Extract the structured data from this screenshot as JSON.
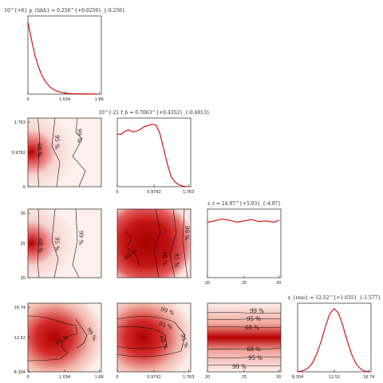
{
  "chart_data": [
    {
      "type": "line",
      "panel": "pbh_marginal",
      "title": "10^{+6} p_{bhh} = 0.256^{+0.0256}_{-0.256}",
      "xlim": [
        0,
        2
      ],
      "xticks": [
        "0",
        "1.034",
        "1.86"
      ],
      "x": [
        0,
        0.1,
        0.2,
        0.3,
        0.4,
        0.5,
        0.6,
        0.7,
        0.8,
        0.9,
        1.0,
        1.2,
        1.4,
        1.6,
        1.8,
        1.9
      ],
      "y": [
        1.0,
        0.75,
        0.52,
        0.36,
        0.24,
        0.16,
        0.1,
        0.065,
        0.04,
        0.025,
        0.015,
        0.007,
        0.004,
        0.003,
        0.002,
        0.002
      ],
      "color": "#e00000"
    },
    {
      "type": "line",
      "panel": "fb_marginal",
      "title": "10^{-2} f_b = 0.7063^{+0.4352}_{-0.4813}",
      "xlim": [
        0,
        1.9
      ],
      "xticks": [
        "0",
        "0.9792",
        "1.763"
      ],
      "x": [
        0,
        0.1,
        0.2,
        0.3,
        0.4,
        0.5,
        0.6,
        0.7,
        0.8,
        0.9,
        1.0,
        1.1,
        1.2,
        1.3,
        1.4,
        1.5,
        1.6,
        1.7,
        1.8
      ],
      "y": [
        0.83,
        0.83,
        0.88,
        0.9,
        0.87,
        0.88,
        0.91,
        0.95,
        0.97,
        0.99,
        0.98,
        0.85,
        0.6,
        0.35,
        0.15,
        0.07,
        0.03,
        0.01,
        0
      ],
      "color": "#e00000"
    },
    {
      "type": "line",
      "panel": "zr_marginal",
      "title": "z_r = 24.97^{+5.03}_{-4.97}",
      "xlim": [
        20,
        30
      ],
      "xticks": [
        "20",
        "25",
        "30"
      ],
      "x": [
        20,
        21,
        22,
        23,
        24,
        25,
        26,
        27,
        28,
        29,
        29.8
      ],
      "y": [
        0.88,
        0.9,
        0.93,
        0.91,
        0.88,
        0.9,
        0.92,
        0.89,
        0.9,
        0.88,
        0.91
      ],
      "color": "#e00000"
    },
    {
      "type": "line",
      "panel": "ereio_marginal",
      "title": "z_{reio} = 12.52^{+1.635}_{-1.577}",
      "xlim": [
        8.304,
        16.74
      ],
      "xticks": [
        "8.304",
        "12.52",
        "16.74"
      ],
      "x": [
        8.3,
        9,
        9.5,
        10,
        10.5,
        11,
        11.5,
        12,
        12.5,
        13,
        13.5,
        14,
        14.5,
        15,
        15.5,
        16,
        16.7
      ],
      "y": [
        0,
        0.02,
        0.06,
        0.14,
        0.28,
        0.48,
        0.72,
        0.92,
        1.0,
        0.93,
        0.73,
        0.49,
        0.28,
        0.13,
        0.05,
        0.01,
        0
      ],
      "color": "#e00000"
    },
    {
      "type": "heatmap",
      "panel": "fb_vs_pbh",
      "xticks": [
        "0",
        "1.034",
        "1.86"
      ],
      "yticks": [
        "0",
        "0.9792",
        "1.763"
      ],
      "contour_labels": [
        "68 %",
        "95 %",
        "99 %"
      ]
    },
    {
      "type": "heatmap",
      "panel": "zr_vs_pbh",
      "yticks": [
        "20",
        "25",
        "30"
      ],
      "contour_labels": [
        "68 %",
        "95 %",
        "99 %"
      ]
    },
    {
      "type": "heatmap",
      "panel": "zr_vs_fb",
      "contour_labels": [
        "68 %",
        "68 %",
        "95 %",
        "99 %"
      ]
    },
    {
      "type": "heatmap",
      "panel": "zreio_vs_pbh",
      "xticks": [
        "0",
        "1.034",
        "1.86"
      ],
      "yticks": [
        "8.304",
        "12.52",
        "16.74"
      ],
      "contour_labels": [
        "95 %",
        "99 %"
      ]
    },
    {
      "type": "heatmap",
      "panel": "zreio_vs_fb",
      "xticks": [
        "0",
        "0.9792",
        "1.763"
      ],
      "contour_labels": [
        "99 %",
        "95 %",
        "68 %",
        "95 %"
      ]
    },
    {
      "type": "heatmap",
      "panel": "zreio_vs_zr",
      "xticks": [
        "20",
        "25",
        "30"
      ],
      "contour_labels": [
        "99 %",
        "95 %",
        "68 %",
        "68 %",
        "95 %",
        "99 %"
      ]
    }
  ]
}
